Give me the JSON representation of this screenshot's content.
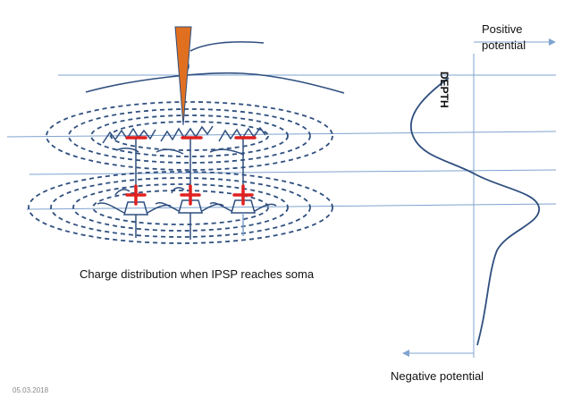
{
  "caption": "Charge distribution when IPSP reaches soma",
  "axis": {
    "positive_line1": "Positive",
    "positive_line2": "potential",
    "negative": "Negative potential",
    "depth": "DEPTH"
  },
  "date": "05.03.2018",
  "colors": {
    "line": "#2f4f7f",
    "ref_line": "#7fa3cf",
    "electrode": "#e07020",
    "charge": "#e02020"
  },
  "charges": {
    "upper": [
      "−",
      "−",
      "−"
    ],
    "lower": [
      "+",
      "+",
      "+"
    ]
  }
}
